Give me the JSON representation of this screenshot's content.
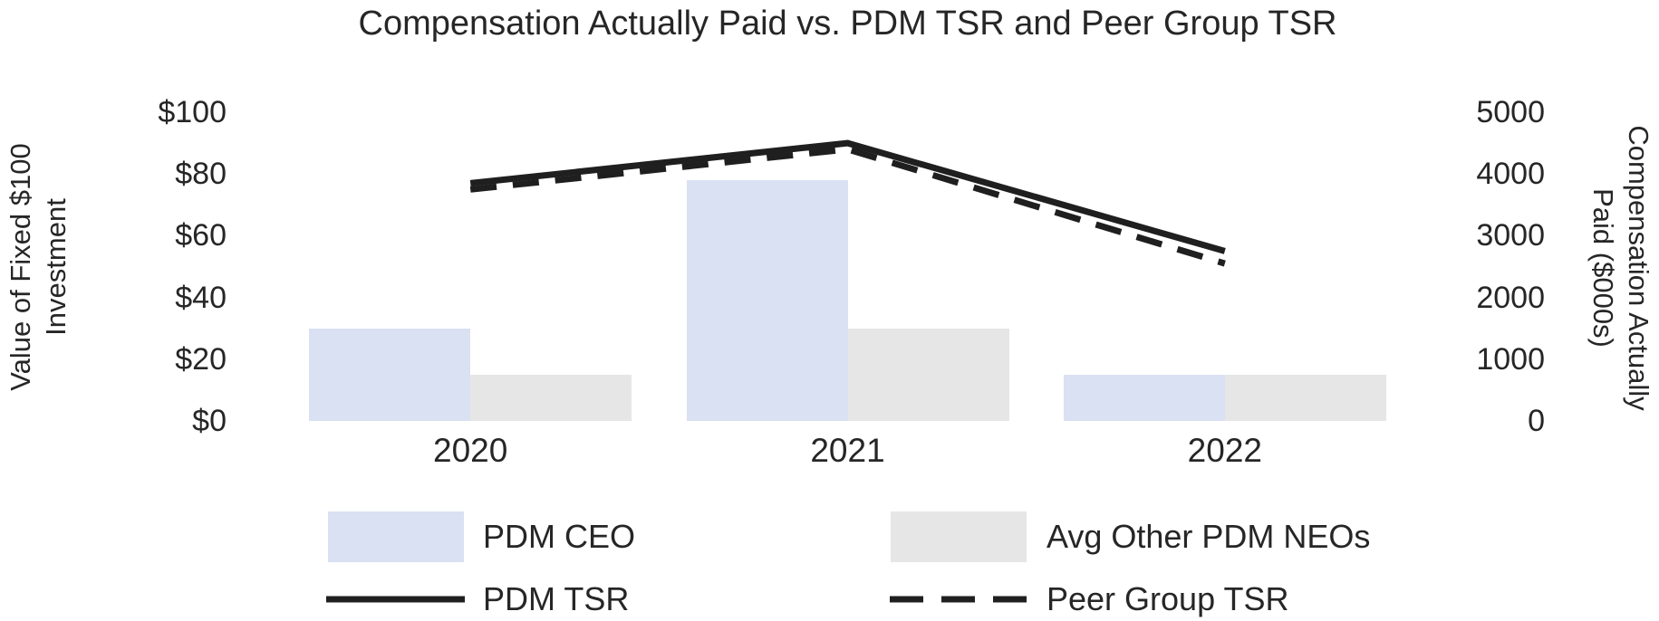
{
  "title": "Compensation Actually Paid vs. PDM TSR and Peer Group TSR",
  "axes": {
    "left": {
      "title_line1": "Value of Fixed $100",
      "title_line2": "Investment",
      "ticks": [
        "$100",
        "$80",
        "$60",
        "$40",
        "$20",
        "$0"
      ]
    },
    "right": {
      "title_line1": "Compensation Actually",
      "title_line2": "Paid ($000s)",
      "ticks": [
        "5000",
        "4000",
        "3000",
        "2000",
        "1000",
        "0"
      ]
    }
  },
  "legend": {
    "ceo_label": "PDM CEO",
    "neos_label": "Avg Other PDM NEOs",
    "pdm_tsr_label": "PDM TSR",
    "peer_tsr_label": "Peer Group TSR"
  },
  "colors": {
    "ceo_bar": "#D9E1F2",
    "neo_bar": "#E7E6E6",
    "line": "#1F1F1F",
    "text": "#262626"
  },
  "chart_data": {
    "type": "combo_bar_line",
    "title": "Compensation Actually Paid vs. PDM TSR and Peer Group TSR",
    "categories": [
      "2020",
      "2021",
      "2022"
    ],
    "series": [
      {
        "name": "PDM CEO",
        "type": "bar",
        "axis": "right",
        "color": "#D9E1F2",
        "values": [
          1500,
          3900,
          750
        ]
      },
      {
        "name": "Avg Other PDM NEOs",
        "type": "bar",
        "axis": "right",
        "color": "#E7E6E6",
        "values": [
          750,
          1500,
          750
        ]
      },
      {
        "name": "PDM TSR",
        "type": "line",
        "style": "solid",
        "axis": "left",
        "color": "#1F1F1F",
        "values": [
          77,
          90,
          55
        ]
      },
      {
        "name": "Peer Group TSR",
        "type": "line",
        "style": "dashed",
        "axis": "left",
        "color": "#1F1F1F",
        "values": [
          75,
          88,
          51
        ]
      }
    ],
    "left_axis_label": "Value of Fixed $100 Investment",
    "right_axis_label": "Compensation Actually Paid ($000s)",
    "left_ylim": [
      0,
      100
    ],
    "left_tick_interval": 20,
    "right_ylim": [
      0,
      5000
    ],
    "right_tick_interval": 1000,
    "gridlines": false,
    "axis_lines": false,
    "legend_position": "bottom"
  }
}
